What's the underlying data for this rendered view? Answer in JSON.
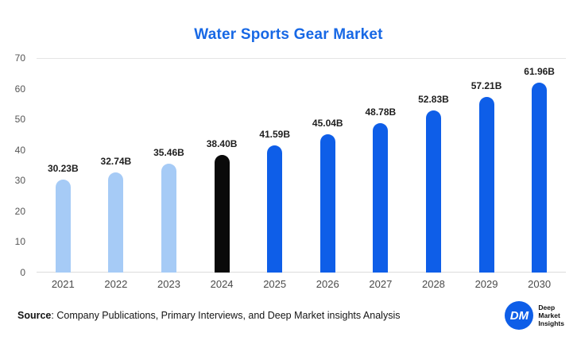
{
  "title": "Water Sports Gear Market",
  "chart_data": {
    "type": "bar",
    "title": "Water Sports Gear Market",
    "categories": [
      "2021",
      "2022",
      "2023",
      "2024",
      "2025",
      "2026",
      "2027",
      "2028",
      "2029",
      "2030"
    ],
    "values": [
      30.23,
      32.74,
      35.46,
      38.4,
      41.59,
      45.04,
      48.78,
      52.83,
      57.21,
      61.96
    ],
    "value_labels": [
      "30.23B",
      "32.74B",
      "35.46B",
      "38.40B",
      "41.59B",
      "45.04B",
      "48.78B",
      "52.83B",
      "57.21B",
      "61.96B"
    ],
    "bar_colors": [
      "#a6cbf6",
      "#a6cbf6",
      "#a6cbf6",
      "#0a0a0a",
      "#0e5ee8",
      "#0e5ee8",
      "#0e5ee8",
      "#0e5ee8",
      "#0e5ee8",
      "#0e5ee8"
    ],
    "xlabel": "",
    "ylabel": "",
    "ylim": [
      0,
      70
    ],
    "yticks": [
      0,
      10,
      20,
      30,
      40,
      50,
      60,
      70
    ],
    "grid": "horizontal boundary lines only (top at 70, axis at 0)",
    "legend": "none"
  },
  "source": {
    "label": "Source",
    "text": ": Company Publications, Primary Interviews, and Deep Market insights Analysis"
  },
  "logo": {
    "monogram": "DM",
    "lines": [
      "Deep",
      "Market",
      "Insights"
    ]
  },
  "colors": {
    "title": "#1768e5",
    "bar_primary": "#0e5ee8",
    "bar_light": "#a6cbf6",
    "bar_highlight": "#0a0a0a",
    "logo_blue": "#0e5ee8"
  }
}
